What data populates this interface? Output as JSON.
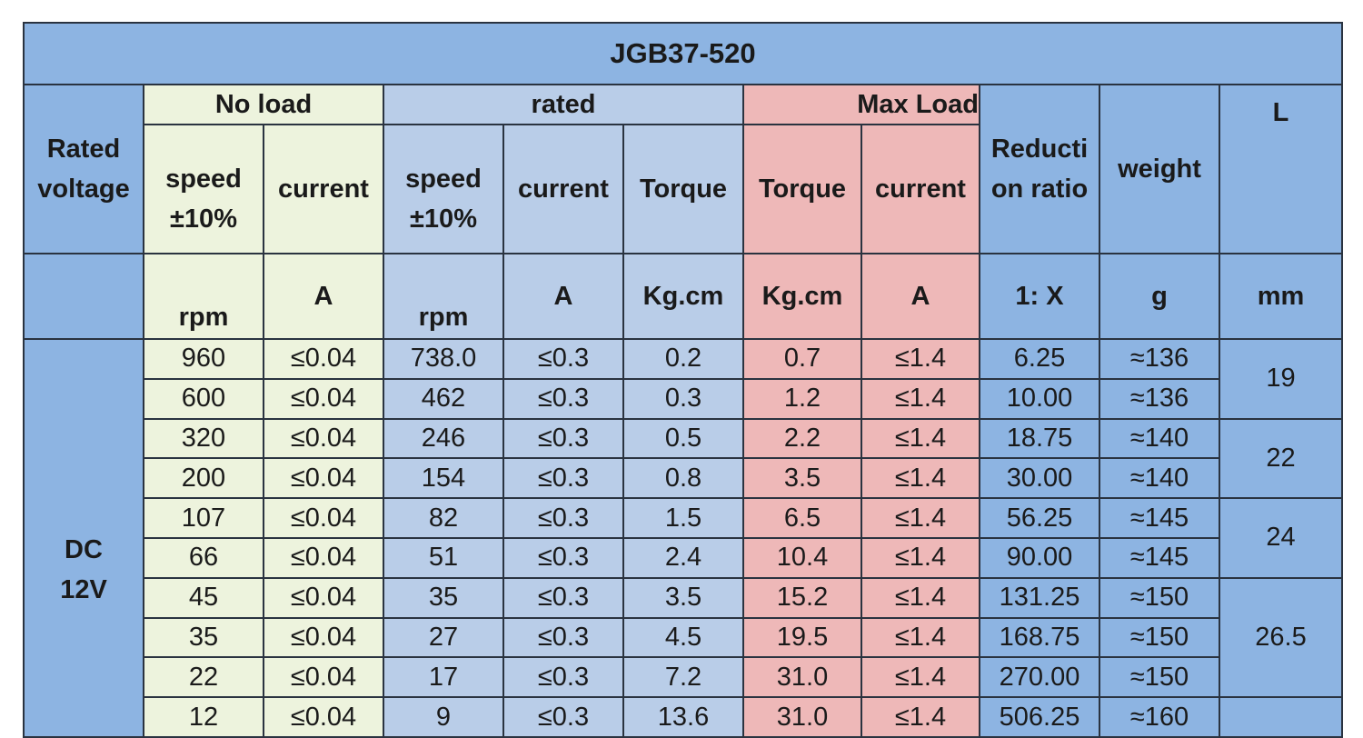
{
  "table": {
    "title": "JGB37-520",
    "headers": {
      "rated_voltage": "Rated voltage",
      "no_load": "No load",
      "rated": "rated",
      "max_load": "Max Load",
      "reduction_ratio": "Reducti on ratio",
      "weight": "weight",
      "length": "L",
      "speed": "speed ±10%",
      "current": "current",
      "torque": "Torque"
    },
    "units": {
      "rpm": "rpm",
      "amp": "A",
      "kgcm": "Kg.cm",
      "ratio": "1: X",
      "gram": "g",
      "mm": "mm"
    },
    "voltage": "DC 12V",
    "rows": [
      [
        "960",
        "≤0.04",
        "738.0",
        "≤0.3",
        "0.2",
        "0.7",
        "≤1.4",
        "6.25",
        "≈136"
      ],
      [
        "600",
        "≤0.04",
        "462",
        "≤0.3",
        "0.3",
        "1.2",
        "≤1.4",
        "10.00",
        "≈136"
      ],
      [
        "320",
        "≤0.04",
        "246",
        "≤0.3",
        "0.5",
        "2.2",
        "≤1.4",
        "18.75",
        "≈140"
      ],
      [
        "200",
        "≤0.04",
        "154",
        "≤0.3",
        "0.8",
        "3.5",
        "≤1.4",
        "30.00",
        "≈140"
      ],
      [
        "107",
        "≤0.04",
        "82",
        "≤0.3",
        "1.5",
        "6.5",
        "≤1.4",
        "56.25",
        "≈145"
      ],
      [
        "66",
        "≤0.04",
        "51",
        "≤0.3",
        "2.4",
        "10.4",
        "≤1.4",
        "90.00",
        "≈145"
      ],
      [
        "45",
        "≤0.04",
        "35",
        "≤0.3",
        "3.5",
        "15.2",
        "≤1.4",
        "131.25",
        "≈150"
      ],
      [
        "35",
        "≤0.04",
        "27",
        "≤0.3",
        "4.5",
        "19.5",
        "≤1.4",
        "168.75",
        "≈150"
      ],
      [
        "22",
        "≤0.04",
        "17",
        "≤0.3",
        "7.2",
        "31.0",
        "≤1.4",
        "270.00",
        "≈150"
      ],
      [
        "12",
        "≤0.04",
        "9",
        "≤0.3",
        "13.6",
        "31.0",
        "≤1.4",
        "506.25",
        "≈160"
      ]
    ],
    "lengths": [
      {
        "value": "19",
        "span": 2
      },
      {
        "value": "22",
        "span": 2
      },
      {
        "value": "24",
        "span": 2
      },
      {
        "value": "26.5",
        "span": 3
      },
      {
        "value": "",
        "span": 1
      }
    ]
  },
  "colors": {
    "blue": "#8db4e2",
    "no_load_green": "#edf3dd",
    "rated_light_blue": "#b9cde8",
    "max_load_pink": "#eeb8b8",
    "border": "#2a3340"
  }
}
